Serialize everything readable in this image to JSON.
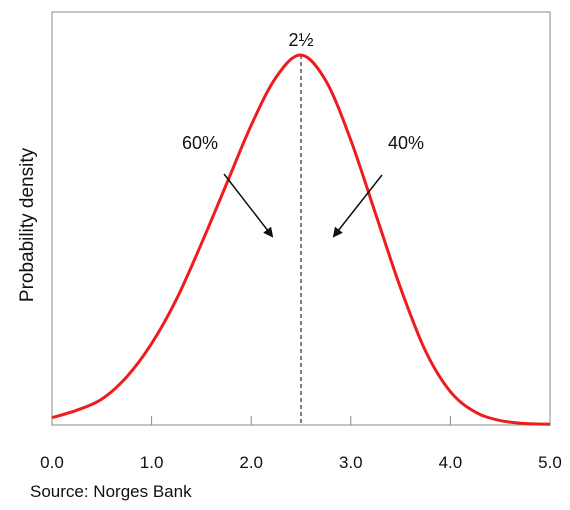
{
  "chart_data": {
    "type": "line",
    "title": "",
    "xlabel": "",
    "ylabel": "Probability density",
    "xlim": [
      0,
      5
    ],
    "x_ticks": [
      "0.0",
      "1.0",
      "2.0",
      "3.0",
      "4.0",
      "5.0"
    ],
    "grid": false,
    "mode": 2.5,
    "mode_label": "2½",
    "series": [
      {
        "color": "#ee1c1c",
        "x": [
          0.0,
          0.25,
          0.5,
          0.75,
          1.0,
          1.25,
          1.5,
          1.75,
          2.0,
          2.25,
          2.5,
          2.75,
          3.0,
          3.25,
          3.5,
          3.75,
          4.0,
          4.25,
          4.5,
          4.75,
          5.0
        ],
        "y": [
          0.02,
          0.04,
          0.07,
          0.13,
          0.22,
          0.34,
          0.49,
          0.65,
          0.81,
          0.94,
          1.0,
          0.93,
          0.77,
          0.57,
          0.37,
          0.2,
          0.09,
          0.035,
          0.012,
          0.004,
          0.002
        ]
      }
    ],
    "annotations": [
      {
        "text": "60%"
      },
      {
        "text": "40%"
      }
    ]
  },
  "source": "Source: Norges Bank"
}
